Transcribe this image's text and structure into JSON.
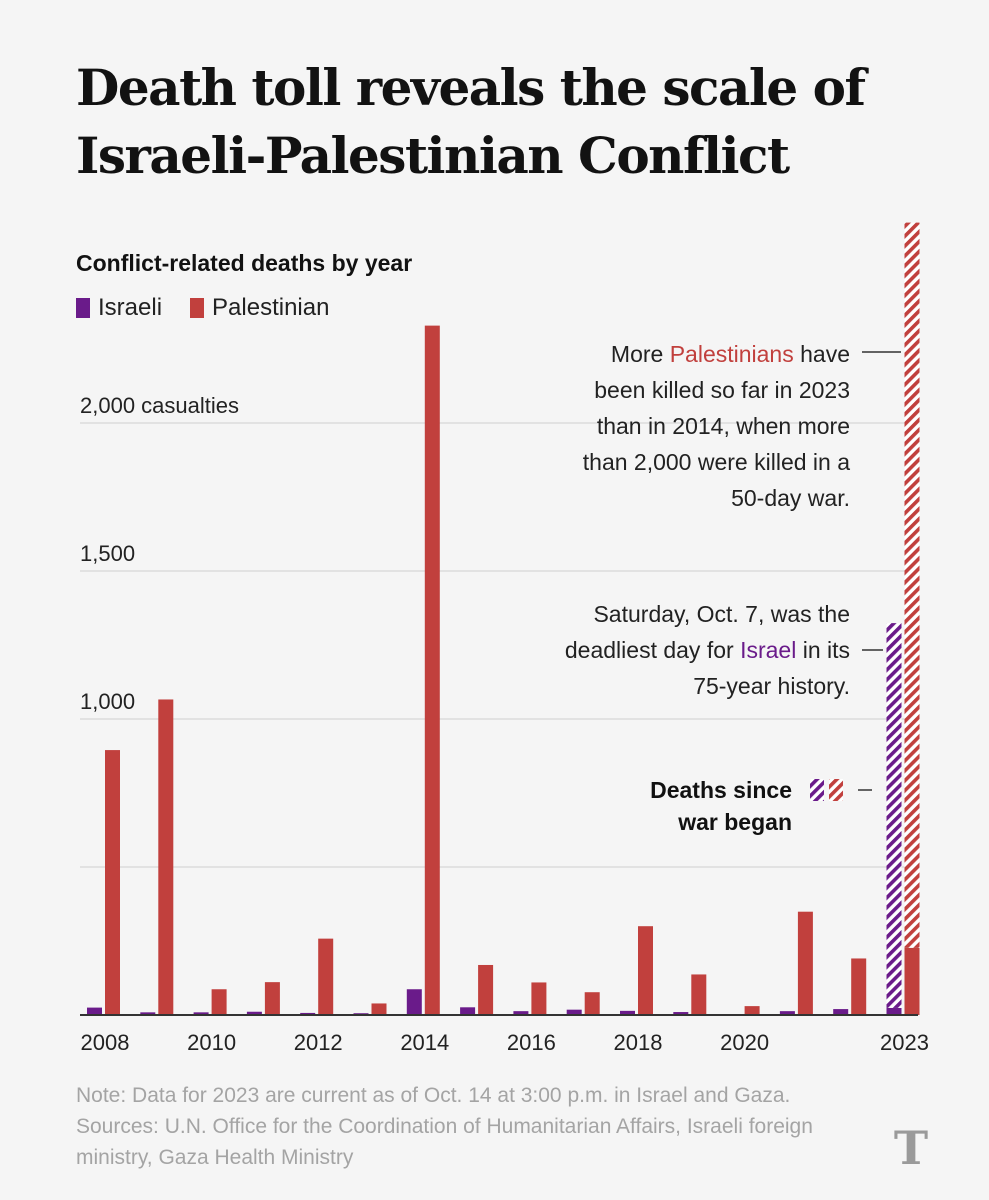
{
  "title": "Death toll reveals the scale of Israeli-Palestinian Conflict",
  "subtitle": "Conflict-related deaths by year",
  "legend": {
    "israeli": "Israeli",
    "palestinian": "Palestinian"
  },
  "colors": {
    "israeli": "#6a1b8a",
    "palestinian": "#c1403d",
    "gridline": "#dcdcdc",
    "baseline": "#333333"
  },
  "annotations": {
    "palestinians_lines": [
      "More |Palestinians| have",
      "been killed so far in 2023",
      "than in 2014, when more",
      "than 2,000 were killed in a",
      "50-day war."
    ],
    "israel_lines": [
      "Saturday, Oct. 7, was the",
      "deadliest day for |Israel| in its",
      "75-year history."
    ],
    "war_label_lines": [
      "Deaths since",
      "war began"
    ]
  },
  "note": "Note: Data for 2023 are current as of Oct. 14 at 3:00 p.m. in Israel and Gaza. Sources: U.N. Office for the Coordination of Humanitarian Affairs, Israeli foreign ministry, Gaza Health Ministry",
  "logo": "T",
  "chart_data": {
    "type": "bar",
    "title": "Conflict-related deaths by year",
    "categories": [
      "2008",
      "2009",
      "2010",
      "2011",
      "2012",
      "2013",
      "2014",
      "2015",
      "2016",
      "2017",
      "2018",
      "2019",
      "2020",
      "2021",
      "2022",
      "2023"
    ],
    "series": [
      {
        "name": "Israeli",
        "values": [
          25,
          9,
          9,
          11,
          7,
          6,
          87,
          26,
          13,
          18,
          14,
          10,
          3,
          13,
          20,
          24
        ]
      },
      {
        "name": "Palestinian",
        "values": [
          895,
          1066,
          87,
          111,
          258,
          39,
          2329,
          169,
          110,
          77,
          300,
          137,
          30,
          349,
          191,
          227
        ]
      },
      {
        "name": "Israeli deaths since war began",
        "values": [
          0,
          0,
          0,
          0,
          0,
          0,
          0,
          0,
          0,
          0,
          0,
          0,
          0,
          0,
          0,
          1300
        ]
      },
      {
        "name": "Palestinian deaths since war began",
        "values": [
          0,
          0,
          0,
          0,
          0,
          0,
          0,
          0,
          0,
          0,
          0,
          0,
          0,
          0,
          0,
          2450
        ]
      }
    ],
    "x_tick_labels": [
      "2008",
      "2010",
      "2012",
      "2014",
      "2016",
      "2018",
      "2020",
      "2023"
    ],
    "y_ticks": [
      {
        "value": 500,
        "label": ""
      },
      {
        "value": 1000,
        "label": "1,000"
      },
      {
        "value": 1500,
        "label": "1,500"
      },
      {
        "value": 2000,
        "label": "2,000 casualties"
      }
    ],
    "ylim": [
      0,
      2500
    ],
    "xlabel": "",
    "ylabel": ""
  }
}
